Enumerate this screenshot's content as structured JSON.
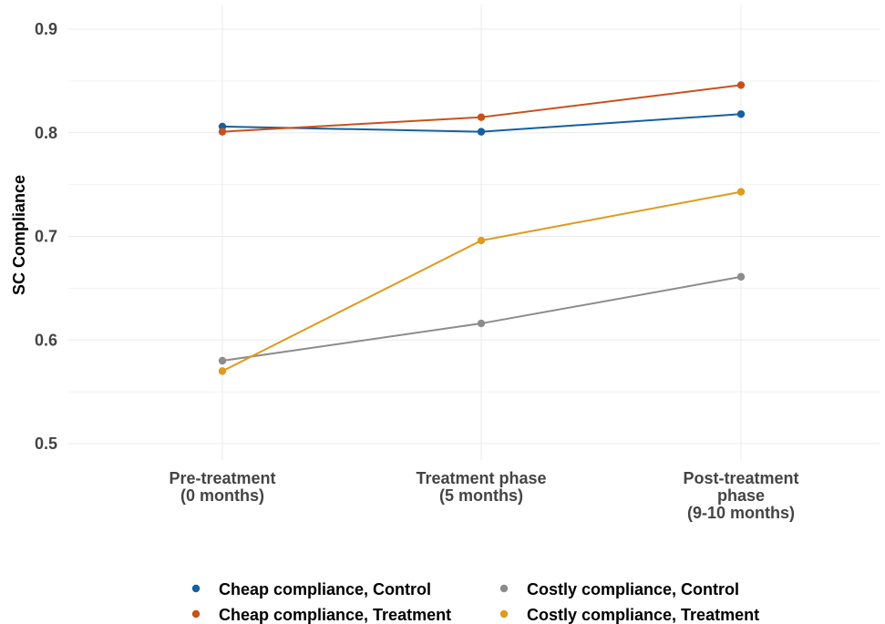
{
  "chart_data": {
    "type": "line",
    "title": "",
    "xlabel": "",
    "ylabel": "SC Compliance",
    "ylim": [
      0.48,
      0.92
    ],
    "yticks": [
      "0.5",
      "0.6",
      "0.7",
      "0.8",
      "0.9"
    ],
    "categories": [
      [
        "Pre-treatment",
        "(0 months)"
      ],
      [
        "Treatment phase",
        "(5 months)"
      ],
      [
        "Post-treatment",
        "phase",
        "(9-10 months)"
      ]
    ],
    "grid": true,
    "legend_position": "bottom",
    "series": [
      {
        "name": "Cheap compliance, Control",
        "color": "#1560a0",
        "values": [
          0.806,
          0.801,
          0.818
        ]
      },
      {
        "name": "Cheap compliance, Treatment",
        "color": "#c8511b",
        "values": [
          0.801,
          0.815,
          0.846
        ]
      },
      {
        "name": "Costly compliance, Control",
        "color": "#8c8c8c",
        "values": [
          0.58,
          0.616,
          0.661
        ]
      },
      {
        "name": "Costly compliance, Treatment",
        "color": "#e09a1c",
        "values": [
          0.57,
          0.696,
          0.743
        ]
      }
    ]
  }
}
